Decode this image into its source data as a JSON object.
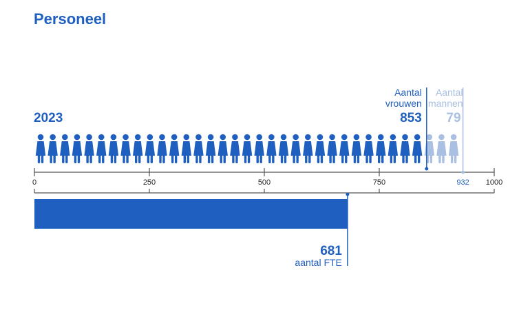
{
  "colors": {
    "accent": "#1f5fc0",
    "men": "#a9c0e2",
    "axis": "#555555",
    "text": "#333333"
  },
  "chart_data": {
    "type": "bar",
    "title": "Personeel",
    "year": "2023",
    "xlim": [
      0,
      1000
    ],
    "ticks": [
      0,
      250,
      500,
      750,
      1000
    ],
    "tick_labels": [
      "0",
      "250",
      "500",
      "750",
      "1000"
    ],
    "series": [
      {
        "name": "Aantal vrouwen",
        "label_line1": "Aantal",
        "label_line2": "vrouwen",
        "value": 853
      },
      {
        "name": "Aantal mannen",
        "label_line1": "Aantal",
        "label_line2": "mannen",
        "value": 79,
        "cumulative_value": 932
      },
      {
        "name": "aantal FTE",
        "value": 681
      }
    ],
    "total_label": "932",
    "icon_units": "person-icons fill the axis range proportionally"
  }
}
